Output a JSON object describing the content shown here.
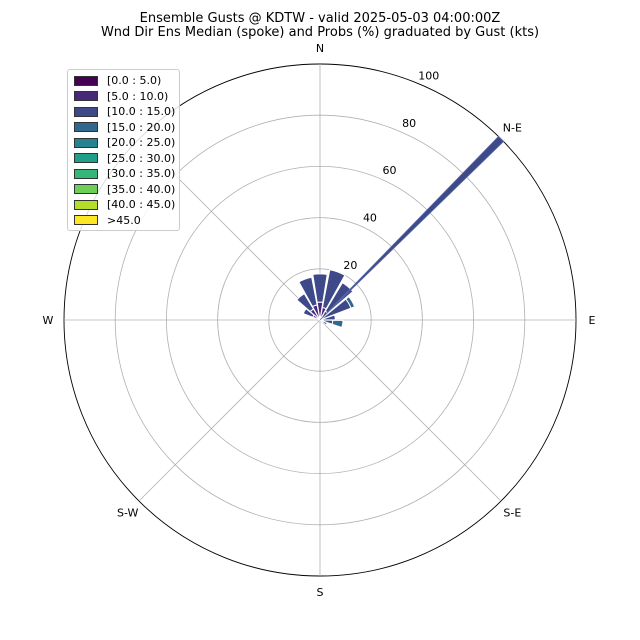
{
  "title": "Ensemble Gusts @ KDTW - valid 2025-05-03 04:00:00Z",
  "subtitle": "Wnd Dir Ens Median (spoke) and Probs (%) graduated by Gust (kts)",
  "chart_data": {
    "type": "polar-bar",
    "direction_labels": [
      "N",
      "N-E",
      "E",
      "S-E",
      "S",
      "S-W",
      "W"
    ],
    "direction_angles": [
      0,
      45,
      90,
      135,
      180,
      225,
      270
    ],
    "radial_ticks": [
      20,
      40,
      60,
      80,
      100
    ],
    "rlim": [
      0,
      100
    ],
    "grid": true,
    "legend_placement": "upper-left",
    "legend": [
      {
        "label": "[0.0 : 5.0)",
        "color": "#440154"
      },
      {
        "label": "[5.0 : 10.0)",
        "color": "#482878"
      },
      {
        "label": "[10.0 : 15.0)",
        "color": "#3e4989"
      },
      {
        "label": "[15.0 : 20.0)",
        "color": "#31688e"
      },
      {
        "label": "[20.0 : 25.0)",
        "color": "#26828e"
      },
      {
        "label": "[25.0 : 30.0)",
        "color": "#1f9e89"
      },
      {
        "label": "[30.0 : 35.0)",
        "color": "#35b779"
      },
      {
        "label": "[35.0 : 40.0)",
        "color": "#6ece58"
      },
      {
        "label": "[40.0 : 45.0)",
        "color": "#b5de2b"
      },
      {
        "label": ">45.0",
        "color": "#fde725"
      }
    ],
    "sector_width_deg": 18,
    "sectors": [
      {
        "direction": 0,
        "bins": [
          {
            "bin": "[5.0 : 10.0)",
            "inner": 0,
            "outer": 7
          },
          {
            "bin": "[10.0 : 15.0)",
            "inner": 7,
            "outer": 18
          }
        ]
      },
      {
        "direction": 20,
        "bins": [
          {
            "bin": "[5.0 : 10.0)",
            "inner": 0,
            "outer": 5
          },
          {
            "bin": "[10.0 : 15.0)",
            "inner": 5,
            "outer": 20
          }
        ]
      },
      {
        "direction": 40,
        "bins": [
          {
            "bin": "[5.0 : 10.0)",
            "inner": 0,
            "outer": 4
          },
          {
            "bin": "[10.0 : 15.0)",
            "inner": 4,
            "outer": 17
          }
        ]
      },
      {
        "direction": 60,
        "bins": [
          {
            "bin": "[10.0 : 15.0)",
            "inner": 0,
            "outer": 13
          },
          {
            "bin": "[15.0 : 20.0)",
            "inner": 13,
            "outer": 14.5
          }
        ]
      },
      {
        "direction": 80,
        "bins": [
          {
            "bin": "[10.0 : 15.0)",
            "inner": 0,
            "outer": 6
          }
        ]
      },
      {
        "direction": 100,
        "bins": [
          {
            "bin": "[10.0 : 15.0)",
            "inner": 0,
            "outer": 5
          },
          {
            "bin": "[15.0 : 20.0)",
            "inner": 5,
            "outer": 9
          }
        ]
      },
      {
        "direction": 120,
        "bins": [
          {
            "bin": "[10.0 : 15.0)",
            "inner": 0,
            "outer": 3
          }
        ]
      },
      {
        "direction": 300,
        "bins": [
          {
            "bin": "[5.0 : 10.0)",
            "inner": 0,
            "outer": 3
          },
          {
            "bin": "[10.0 : 15.0)",
            "inner": 3,
            "outer": 7
          }
        ]
      },
      {
        "direction": 320,
        "bins": [
          {
            "bin": "[5.0 : 10.0)",
            "inner": 0,
            "outer": 5
          },
          {
            "bin": "[10.0 : 15.0)",
            "inner": 5,
            "outer": 12
          }
        ]
      },
      {
        "direction": 340,
        "bins": [
          {
            "bin": "[5.0 : 10.0)",
            "inner": 0,
            "outer": 6
          },
          {
            "bin": "[10.0 : 15.0)",
            "inner": 6,
            "outer": 17
          }
        ]
      }
    ],
    "median_spoke": {
      "direction": 45,
      "value": 100
    }
  }
}
